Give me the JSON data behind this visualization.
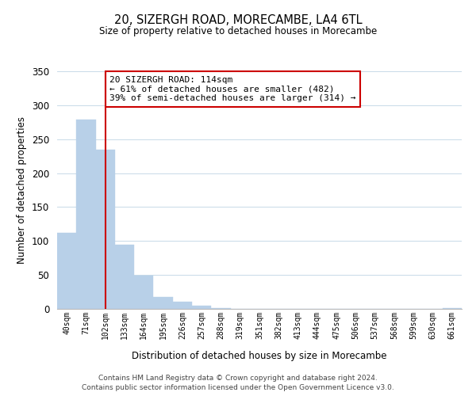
{
  "title": "20, SIZERGH ROAD, MORECAMBE, LA4 6TL",
  "subtitle": "Size of property relative to detached houses in Morecambe",
  "xlabel": "Distribution of detached houses by size in Morecambe",
  "ylabel": "Number of detached properties",
  "bar_values": [
    112,
    279,
    235,
    95,
    49,
    18,
    11,
    5,
    1,
    0,
    0,
    0,
    0,
    0,
    0,
    0,
    0,
    0,
    0,
    0,
    1
  ],
  "bar_labels": [
    "40sqm",
    "71sqm",
    "102sqm",
    "133sqm",
    "164sqm",
    "195sqm",
    "226sqm",
    "257sqm",
    "288sqm",
    "319sqm",
    "351sqm",
    "382sqm",
    "413sqm",
    "444sqm",
    "475sqm",
    "506sqm",
    "537sqm",
    "568sqm",
    "599sqm",
    "630sqm",
    "661sqm"
  ],
  "bar_color": "#b8d0e8",
  "bar_edge_color": "#b8d0e8",
  "vline_x": 2,
  "vline_color": "#cc0000",
  "annotation_text": "20 SIZERGH ROAD: 114sqm\n← 61% of detached houses are smaller (482)\n39% of semi-detached houses are larger (314) →",
  "annotation_box_color": "#ffffff",
  "annotation_box_edge": "#cc0000",
  "ylim": [
    0,
    350
  ],
  "yticks": [
    0,
    50,
    100,
    150,
    200,
    250,
    300,
    350
  ],
  "footer1": "Contains HM Land Registry data © Crown copyright and database right 2024.",
  "footer2": "Contains public sector information licensed under the Open Government Licence v3.0.",
  "background_color": "#ffffff",
  "grid_color": "#c8dae8"
}
